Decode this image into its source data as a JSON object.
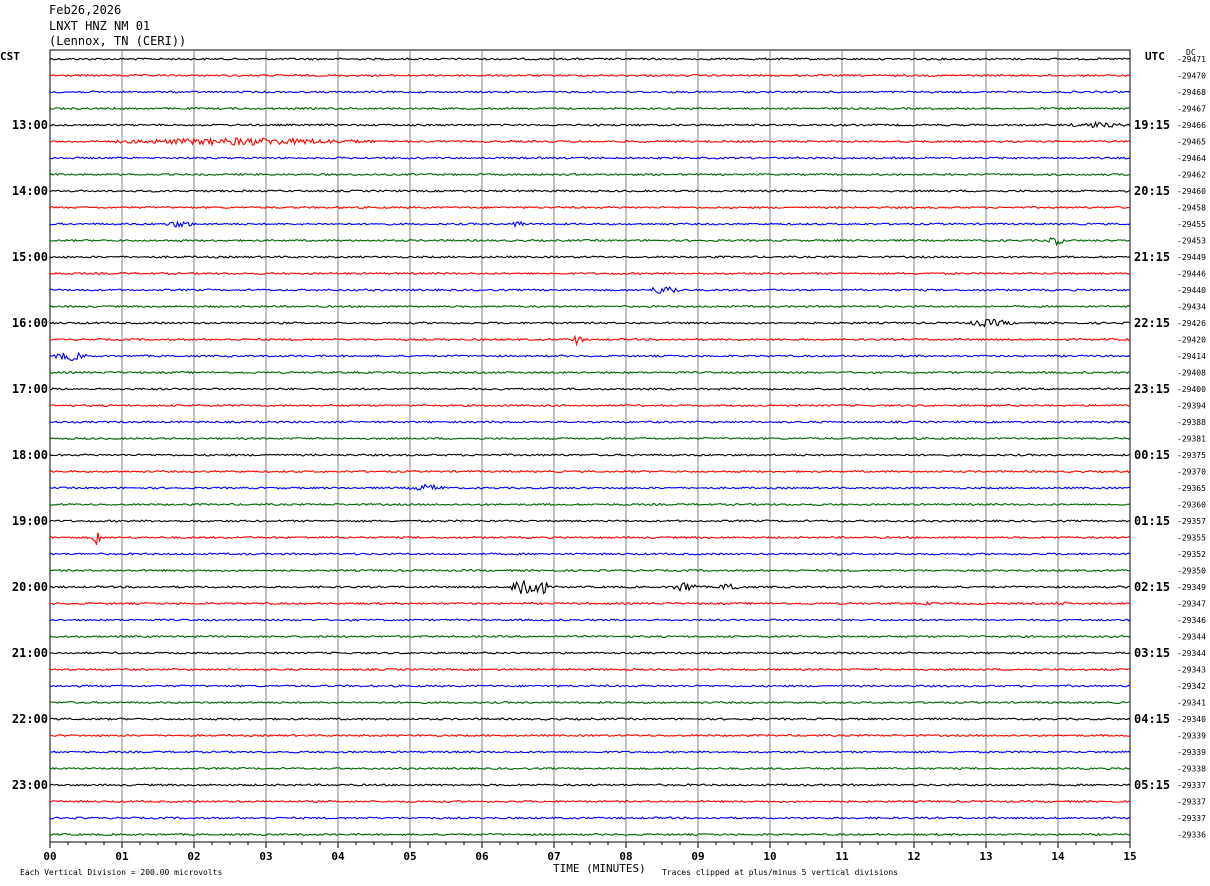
{
  "header": {
    "date": "Feb26,2026",
    "station": "LNXT HNZ NM 01",
    "location": "(Lennox, TN (CERI))"
  },
  "left_timezone": "CST",
  "right_timezone": "UTC",
  "dc_label": "DC",
  "footer": {
    "scale_note": "Each Vertical Division =  200.00 microvolts",
    "clip_note": "Traces clipped at plus/minus 5 vertical divisions",
    "xlabel": "TIME (MINUTES)"
  },
  "chart_data": {
    "type": "line",
    "subtype": "helicorder",
    "xlabel": "TIME (MINUTES)",
    "xlim": [
      0,
      15
    ],
    "x_ticks": [
      "00",
      "01",
      "02",
      "03",
      "04",
      "05",
      "06",
      "07",
      "08",
      "09",
      "10",
      "11",
      "12",
      "13",
      "14",
      "15"
    ],
    "trace_minutes": 15,
    "trace_colors": [
      "#000000",
      "#ff0000",
      "#0000ff",
      "#006400"
    ],
    "left_hour_labels": [
      "13:00",
      "14:00",
      "15:00",
      "16:00",
      "17:00",
      "18:00",
      "19:00",
      "20:00",
      "21:00",
      "22:00",
      "23:00"
    ],
    "right_hour_labels": [
      "19:15",
      "20:15",
      "21:15",
      "22:15",
      "23:15",
      "00:15",
      "01:15",
      "02:15",
      "03:15",
      "04:15",
      "05:15"
    ],
    "hour_label_start_row": 4,
    "dc_offsets": [
      "-29471",
      "-29470",
      "-29468",
      "-29467",
      "-29466",
      "-29465",
      "-29464",
      "-29462",
      "-29460",
      "-29458",
      "-29455",
      "-29453",
      "-29449",
      "-29446",
      "-29440",
      "-29434",
      "-29426",
      "-29420",
      "-29414",
      "-29408",
      "-29400",
      "-29394",
      "-29388",
      "-29381",
      "-29375",
      "-29370",
      "-29365",
      "-29360",
      "-29357",
      "-29355",
      "-29352",
      "-29350",
      "-29349",
      "-29347",
      "-29346",
      "-29344",
      "-29344",
      "-29343",
      "-29342",
      "-29341",
      "-29340",
      "-29339",
      "-29339",
      "-29338",
      "-29337",
      "-29337",
      "-29337",
      "-29336"
    ],
    "events": [
      {
        "row": 4,
        "start_min": 14.1,
        "end_min": 15.0,
        "amp": 3
      },
      {
        "row": 5,
        "start_min": 0.9,
        "end_min": 4.5,
        "amp": 4
      },
      {
        "row": 10,
        "start_min": 1.6,
        "end_min": 2.0,
        "amp": 4
      },
      {
        "row": 10,
        "start_min": 6.4,
        "end_min": 6.6,
        "amp": 4
      },
      {
        "row": 11,
        "start_min": 13.8,
        "end_min": 14.1,
        "amp": 5
      },
      {
        "row": 14,
        "start_min": 8.3,
        "end_min": 8.8,
        "amp": 5
      },
      {
        "row": 16,
        "start_min": 12.7,
        "end_min": 13.4,
        "amp": 4
      },
      {
        "row": 17,
        "start_min": 7.25,
        "end_min": 7.4,
        "amp": 6
      },
      {
        "row": 18,
        "start_min": 0.05,
        "end_min": 0.5,
        "amp": 5
      },
      {
        "row": 26,
        "start_min": 5.0,
        "end_min": 5.5,
        "amp": 4
      },
      {
        "row": 29,
        "start_min": 0.6,
        "end_min": 0.7,
        "amp": 12
      },
      {
        "row": 32,
        "start_min": 6.4,
        "end_min": 6.9,
        "amp": 14
      },
      {
        "row": 32,
        "start_min": 8.65,
        "end_min": 9.0,
        "amp": 6
      },
      {
        "row": 32,
        "start_min": 9.3,
        "end_min": 9.6,
        "amp": 5
      },
      {
        "row": 33,
        "start_min": 12.1,
        "end_min": 12.3,
        "amp": 2
      },
      {
        "row": 33,
        "start_min": 13.9,
        "end_min": 14.2,
        "amp": 2
      }
    ]
  }
}
